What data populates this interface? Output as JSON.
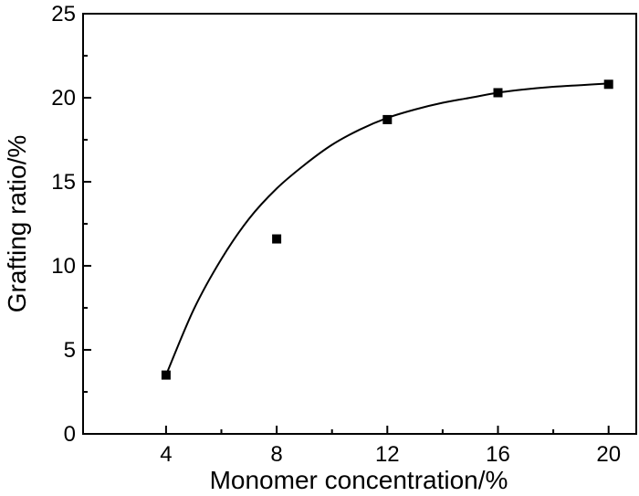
{
  "chart_data": {
    "type": "scatter",
    "xlabel": "Monomer concentration/%",
    "ylabel": "Grafting ratio/%",
    "xlim": [
      1,
      21
    ],
    "ylim": [
      0,
      25
    ],
    "xticks": [
      4,
      8,
      12,
      16,
      20
    ],
    "yticks": [
      0,
      5,
      10,
      15,
      20,
      25
    ],
    "x_minor_ticks": [
      6,
      10,
      14,
      18
    ],
    "grid": false,
    "legend": "none",
    "series": [
      {
        "marker": "square",
        "x": [
          4,
          8,
          12,
          16,
          20
        ],
        "y": [
          3.5,
          11.6,
          18.7,
          20.3,
          20.8
        ]
      }
    ],
    "fit_curve": {
      "x": [
        4,
        5,
        6,
        7,
        8,
        9,
        10,
        11,
        12,
        13,
        14,
        15,
        16,
        17,
        18,
        19,
        20
      ],
      "y": [
        3.5,
        7.4,
        10.4,
        12.8,
        14.6,
        16.0,
        17.2,
        18.1,
        18.8,
        19.3,
        19.7,
        20.0,
        20.3,
        20.5,
        20.65,
        20.75,
        20.85
      ]
    },
    "colors": {
      "marker": "#000000",
      "curve": "#000000",
      "axis": "#000000"
    }
  }
}
